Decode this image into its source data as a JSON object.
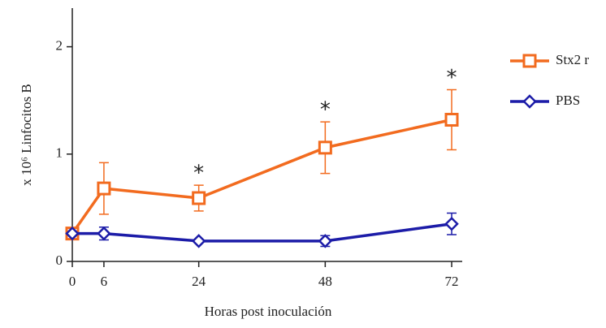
{
  "chart_data": {
    "type": "line",
    "x_label": "Horas post inoculación",
    "y_label": "x 10⁶ Linfocitos B",
    "x": [
      0,
      6,
      24,
      48,
      72
    ],
    "series": [
      {
        "name": "Stx2 r",
        "color": "#f26b1f",
        "marker": "square",
        "values": [
          0.26,
          0.68,
          0.59,
          1.06,
          1.32
        ],
        "errors": [
          0,
          0.24,
          0.12,
          0.24,
          0.28
        ]
      },
      {
        "name": "PBS",
        "color": "#1c1ca8",
        "marker": "diamond",
        "values": [
          0.26,
          0.26,
          0.19,
          0.19,
          0.35
        ],
        "errors": [
          0,
          0.06,
          0,
          0.05,
          0.1
        ]
      }
    ],
    "annotations": [
      {
        "text": "*",
        "x": 24,
        "series": 0
      },
      {
        "text": "*",
        "x": 48,
        "series": 0
      },
      {
        "text": "*",
        "x": 72,
        "series": 0
      }
    ],
    "xlim": [
      0,
      74
    ],
    "ylim": [
      0,
      2.36
    ],
    "xticks": [
      0,
      6,
      24,
      48,
      72
    ],
    "yticks": [
      0,
      1,
      2
    ],
    "legend": "right"
  }
}
